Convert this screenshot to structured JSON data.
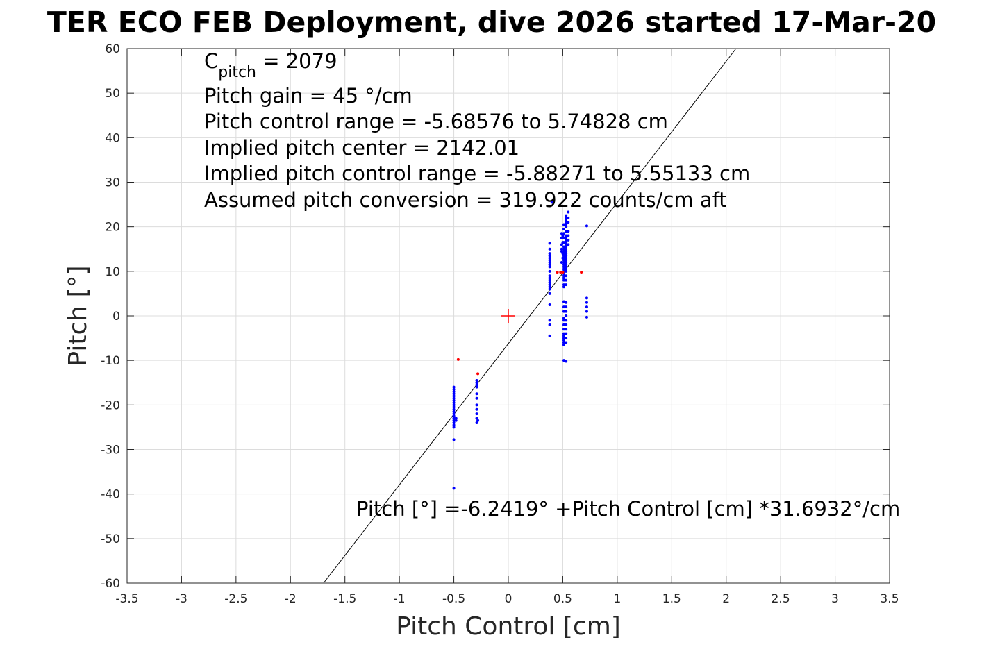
{
  "chart_data": {
    "type": "scatter",
    "title": "TER ECO FEB Deployment, dive 2026 started 17-Mar-20",
    "xlabel": "Pitch Control [cm]",
    "ylabel": "Pitch [°]",
    "xlim": [
      -3.5,
      3.5
    ],
    "ylim": [
      -60,
      60
    ],
    "xticks": [
      -3.5,
      -3,
      -2.5,
      -2,
      -1.5,
      -1,
      -0.5,
      0,
      0.5,
      1,
      1.5,
      2,
      2.5,
      3,
      3.5
    ],
    "xtick_labels": [
      "-3.5",
      "-3",
      "-2.5",
      "-2",
      "-1.5",
      "-1",
      "-0.5",
      "0",
      "0.5",
      "1",
      "1.5",
      "2",
      "2.5",
      "3",
      "3.5"
    ],
    "yticks": [
      -60,
      -50,
      -40,
      -30,
      -20,
      -10,
      0,
      10,
      20,
      30,
      40,
      50,
      60
    ],
    "ytick_labels": [
      "-60",
      "-50",
      "-40",
      "-30",
      "-20",
      "-10",
      "0",
      "10",
      "20",
      "30",
      "40",
      "50",
      "60"
    ],
    "grid": true,
    "annotations": {
      "cpitch_symbol": "C",
      "cpitch_subscript": "pitch",
      "cpitch_value": " = 2079",
      "lines": [
        "Pitch gain = 45 °/cm",
        "Pitch control range = -5.68576 to 5.74828 cm",
        "Implied pitch center = 2142.01",
        "Implied pitch control range = -5.88271 to 5.55133 cm",
        "Assumed pitch conversion = 319.922 counts/cm aft"
      ],
      "fit_equation": "Pitch [°] =-6.2419° +Pitch Control [cm] *31.6932°/cm"
    },
    "fit_line": {
      "intercept": -6.2419,
      "slope": 31.6932,
      "color": "#000000"
    },
    "center_marker": {
      "x": 0,
      "y": 0,
      "color": "#ff0000",
      "shape": "plus"
    },
    "series": [
      {
        "color": "#0000ff",
        "marker": "dot",
        "x": [
          -0.5,
          -0.5,
          -0.5,
          -0.5,
          -0.5,
          -0.5,
          -0.5,
          -0.5,
          -0.5,
          -0.5,
          -0.5,
          -0.5,
          -0.5,
          -0.5,
          -0.5,
          -0.5,
          -0.5,
          -0.5,
          -0.5,
          -0.5,
          -0.5,
          -0.5,
          -0.5,
          -0.5,
          -0.48,
          -0.48,
          -0.5,
          -0.5,
          -0.5,
          -0.29,
          -0.29,
          -0.29,
          -0.29,
          -0.29,
          -0.29,
          -0.29,
          -0.29,
          -0.29,
          -0.29,
          -0.29,
          -0.28,
          0.38,
          0.38,
          0.38,
          0.38,
          0.38,
          0.38,
          0.38,
          0.38,
          0.38,
          0.38,
          0.38,
          0.38,
          0.38,
          0.38,
          0.38,
          0.38,
          0.38,
          0.38,
          0.38,
          0.38,
          0.38,
          0.38,
          0.4,
          0.49,
          0.49,
          0.49,
          0.49,
          0.49,
          0.49,
          0.5,
          0.5,
          0.5,
          0.5,
          0.51,
          0.51,
          0.51,
          0.51,
          0.51,
          0.51,
          0.51,
          0.51,
          0.51,
          0.51,
          0.51,
          0.51,
          0.51,
          0.51,
          0.51,
          0.51,
          0.51,
          0.51,
          0.51,
          0.51,
          0.51,
          0.51,
          0.51,
          0.51,
          0.51,
          0.51,
          0.51,
          0.51,
          0.51,
          0.51,
          0.51,
          0.51,
          0.51,
          0.51,
          0.51,
          0.51,
          0.51,
          0.53,
          0.53,
          0.53,
          0.53,
          0.53,
          0.53,
          0.53,
          0.53,
          0.53,
          0.53,
          0.53,
          0.53,
          0.53,
          0.53,
          0.53,
          0.53,
          0.53,
          0.53,
          0.53,
          0.53,
          0.53,
          0.53,
          0.53,
          0.53,
          0.53,
          0.53,
          0.53,
          0.53,
          0.53,
          0.53,
          0.53,
          0.53,
          0.53,
          0.53,
          0.53,
          0.53,
          0.53,
          0.53,
          0.55,
          0.55,
          0.55,
          0.55,
          0.55,
          0.55,
          0.55,
          0.72,
          0.72,
          0.72,
          0.72,
          0.72,
          0.72
        ],
        "y": [
          -16,
          -16.5,
          -17,
          -17.5,
          -18,
          -18.5,
          -19,
          -19.5,
          -20,
          -20.5,
          -21,
          -21.5,
          -22,
          -22.5,
          -23,
          -23.5,
          -24,
          -24.5,
          -21.5,
          -22.5,
          -23.5,
          -24,
          -23,
          -22.5,
          -23,
          -23.5,
          -25,
          -27.8,
          -38.7,
          -14.5,
          -15,
          -15.5,
          -16,
          -17.5,
          -18.5,
          -20,
          -21,
          -22,
          -23,
          -24,
          -23.5,
          16.3,
          15,
          14,
          13,
          12,
          11.5,
          10,
          9,
          8,
          7,
          6,
          5,
          2.5,
          -1,
          -2,
          -4.5,
          13.5,
          12.5,
          11,
          7.5,
          6.5,
          8.5,
          25.5,
          18.5,
          17.5,
          16,
          15,
          14.5,
          12,
          18,
          16.5,
          14,
          13,
          20.5,
          19.5,
          18.5,
          17.5,
          16.5,
          15.5,
          15,
          14.5,
          14,
          13.5,
          13,
          12.5,
          12,
          11.5,
          11,
          10.5,
          10,
          9.5,
          9,
          8.5,
          8,
          7,
          6.5,
          3.2,
          2,
          1,
          -0.5,
          -1,
          -2,
          -3,
          -4,
          -4.5,
          -5,
          -5.5,
          -6,
          -6.5,
          -10,
          22,
          21.5,
          21,
          20,
          19,
          18,
          17,
          16,
          15,
          14,
          13,
          12,
          11,
          10,
          9,
          8,
          7,
          3,
          2,
          1,
          0,
          -1,
          -2,
          -3,
          -4,
          -5,
          -6,
          -10.2,
          17.5,
          16.5,
          15.5,
          14.5,
          13.5,
          12.5,
          11.5,
          10.5,
          20.5,
          22.5,
          23.3,
          22,
          21,
          19,
          18,
          17,
          16,
          20.2,
          4,
          3,
          2,
          1,
          -0.3
        ]
      },
      {
        "color": "#ff0000",
        "marker": "dot",
        "x": [
          -0.46,
          -0.28,
          0.45,
          0.48,
          0.5,
          0.67
        ],
        "y": [
          -9.8,
          -13,
          9.8,
          9.8,
          9.8,
          9.8
        ]
      }
    ]
  }
}
